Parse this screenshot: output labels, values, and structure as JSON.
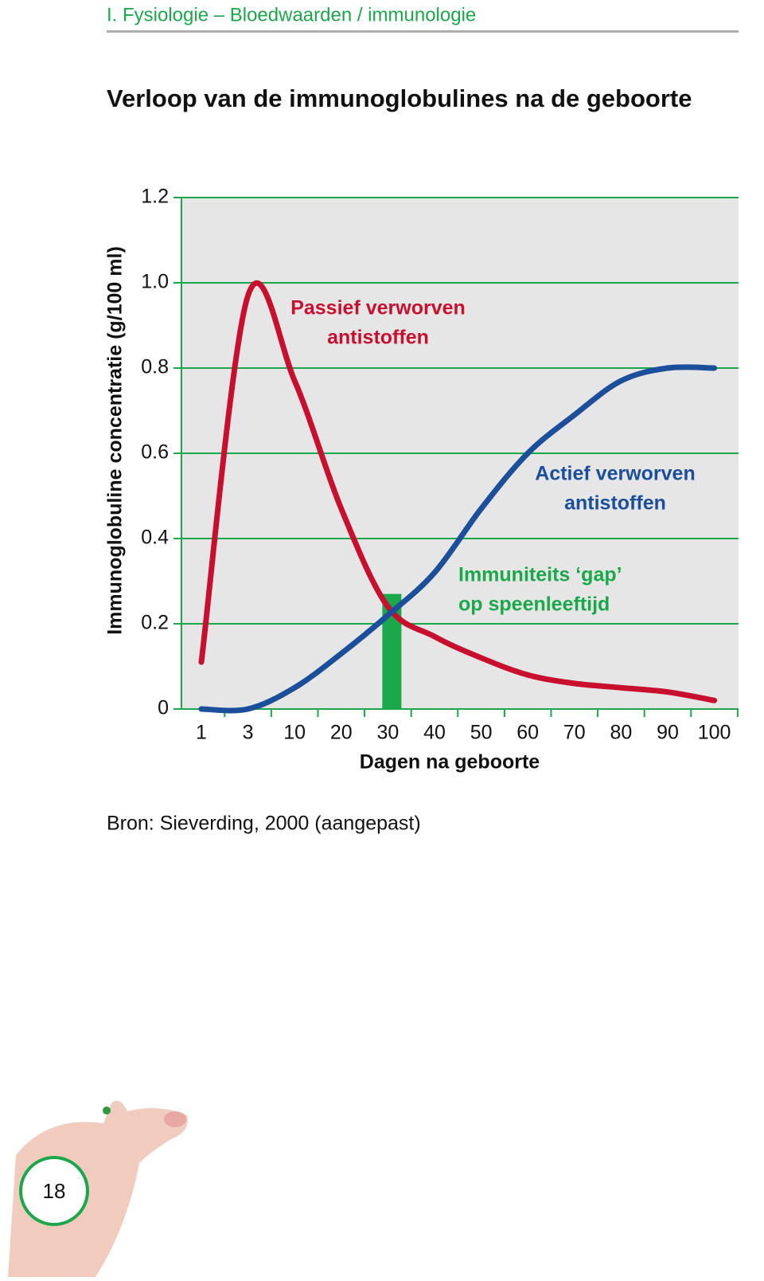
{
  "header": {
    "section": "I. Fysiologie – Bloedwaarden / immunologie",
    "title": "Verloop van de immunoglobulines na de geboorte"
  },
  "chart_data": {
    "type": "line",
    "y_label": "Immunoglobuline concentratie (g/100 ml)",
    "x_label": "Dagen na geboorte",
    "categories": [
      "1",
      "3",
      "10",
      "20",
      "30",
      "40",
      "50",
      "60",
      "70",
      "80",
      "90",
      "100"
    ],
    "series": [
      {
        "name": "Passief verworven antistoffen",
        "color": "#c8102e",
        "values": [
          0.11,
          0.97,
          0.77,
          0.47,
          0.24,
          0.17,
          0.12,
          0.08,
          0.06,
          0.05,
          0.04,
          0.02
        ]
      },
      {
        "name": "Actief verworven antistoffen",
        "color": "#1b4f9c",
        "values": [
          0.0,
          0.0,
          0.05,
          0.13,
          0.22,
          0.32,
          0.47,
          0.6,
          0.69,
          0.77,
          0.8,
          0.8
        ]
      }
    ],
    "annotations": [
      {
        "lines": [
          "Passief verworven",
          "antistoffen"
        ],
        "color": "#c8102e"
      },
      {
        "lines": [
          "Actief verworven",
          "antistoffen"
        ],
        "color": "#1b4f9c"
      },
      {
        "lines": [
          "Immuniteits ‘gap’",
          "op speenleeftijd"
        ],
        "color": "#1aa84a"
      }
    ],
    "gap_bar": {
      "value": 0.27,
      "color": "#1aa84a"
    },
    "ylim": [
      0,
      1.2
    ],
    "yticks": [
      0,
      0.2,
      0.4,
      0.6,
      0.8,
      {
        "value": 1,
        "label": "1.0"
      },
      1.2
    ],
    "grid": true
  },
  "source": "Bron: Sieverding, 2000 (aangepast)",
  "page_number": "18"
}
